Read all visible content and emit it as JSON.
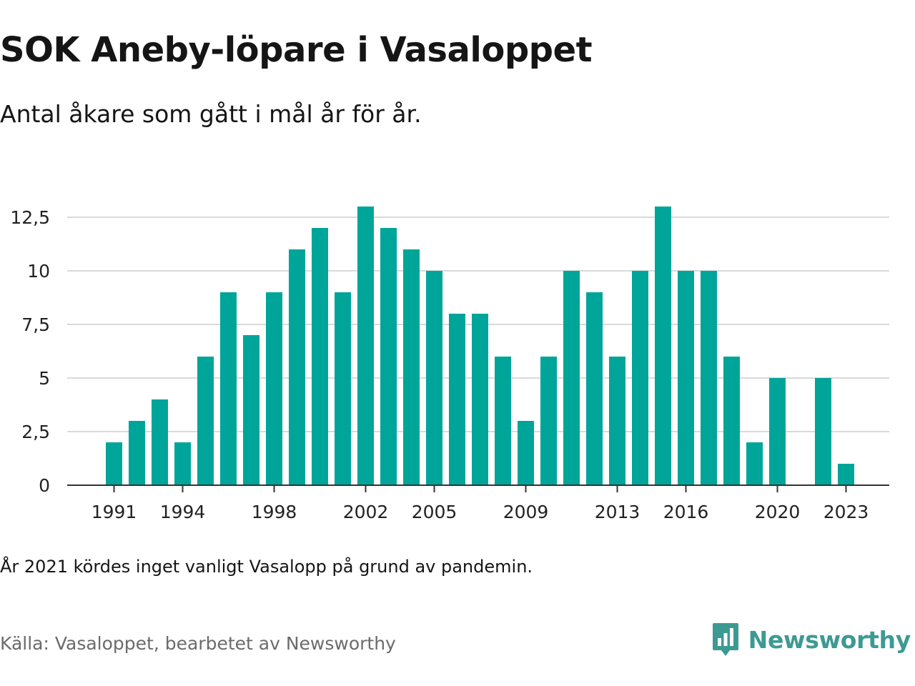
{
  "title": "SOK Aneby-löpare i Vasaloppet",
  "subtitle": "Antal åkare som gått i mål år för år.",
  "note": "År 2021 kördes inget vanligt Vasalopp på grund av pandemin.",
  "source": "Källa: Vasaloppet, bearbetet av Newsworthy",
  "brand": {
    "name": "Newsworthy",
    "icon": "newsworthy-logo-icon",
    "color": "#3d9a93"
  },
  "chart_data": {
    "type": "bar",
    "title": "SOK Aneby-löpare i Vasaloppet",
    "xlabel": "",
    "ylabel": "",
    "bar_color": "#00a59a",
    "grid": true,
    "ylim": [
      0,
      13
    ],
    "yticks": [
      0,
      2.5,
      5,
      7.5,
      10,
      12.5
    ],
    "ytick_labels": [
      "0",
      "2,5",
      "5",
      "7,5",
      "10",
      "12,5"
    ],
    "xticks": [
      1991,
      1994,
      1998,
      2002,
      2005,
      2009,
      2013,
      2016,
      2020,
      2023
    ],
    "x": [
      1991,
      1992,
      1993,
      1994,
      1995,
      1996,
      1997,
      1998,
      1999,
      2000,
      2001,
      2002,
      2003,
      2004,
      2005,
      2006,
      2007,
      2008,
      2009,
      2010,
      2011,
      2012,
      2013,
      2014,
      2015,
      2016,
      2017,
      2018,
      2019,
      2020,
      2021,
      2022,
      2023
    ],
    "values": [
      2,
      3,
      4,
      2,
      6,
      9,
      7,
      9,
      11,
      12,
      9,
      13,
      12,
      11,
      10,
      8,
      8,
      6,
      3,
      6,
      10,
      9,
      6,
      10,
      13,
      10,
      10,
      6,
      2,
      5,
      null,
      5,
      1
    ]
  }
}
